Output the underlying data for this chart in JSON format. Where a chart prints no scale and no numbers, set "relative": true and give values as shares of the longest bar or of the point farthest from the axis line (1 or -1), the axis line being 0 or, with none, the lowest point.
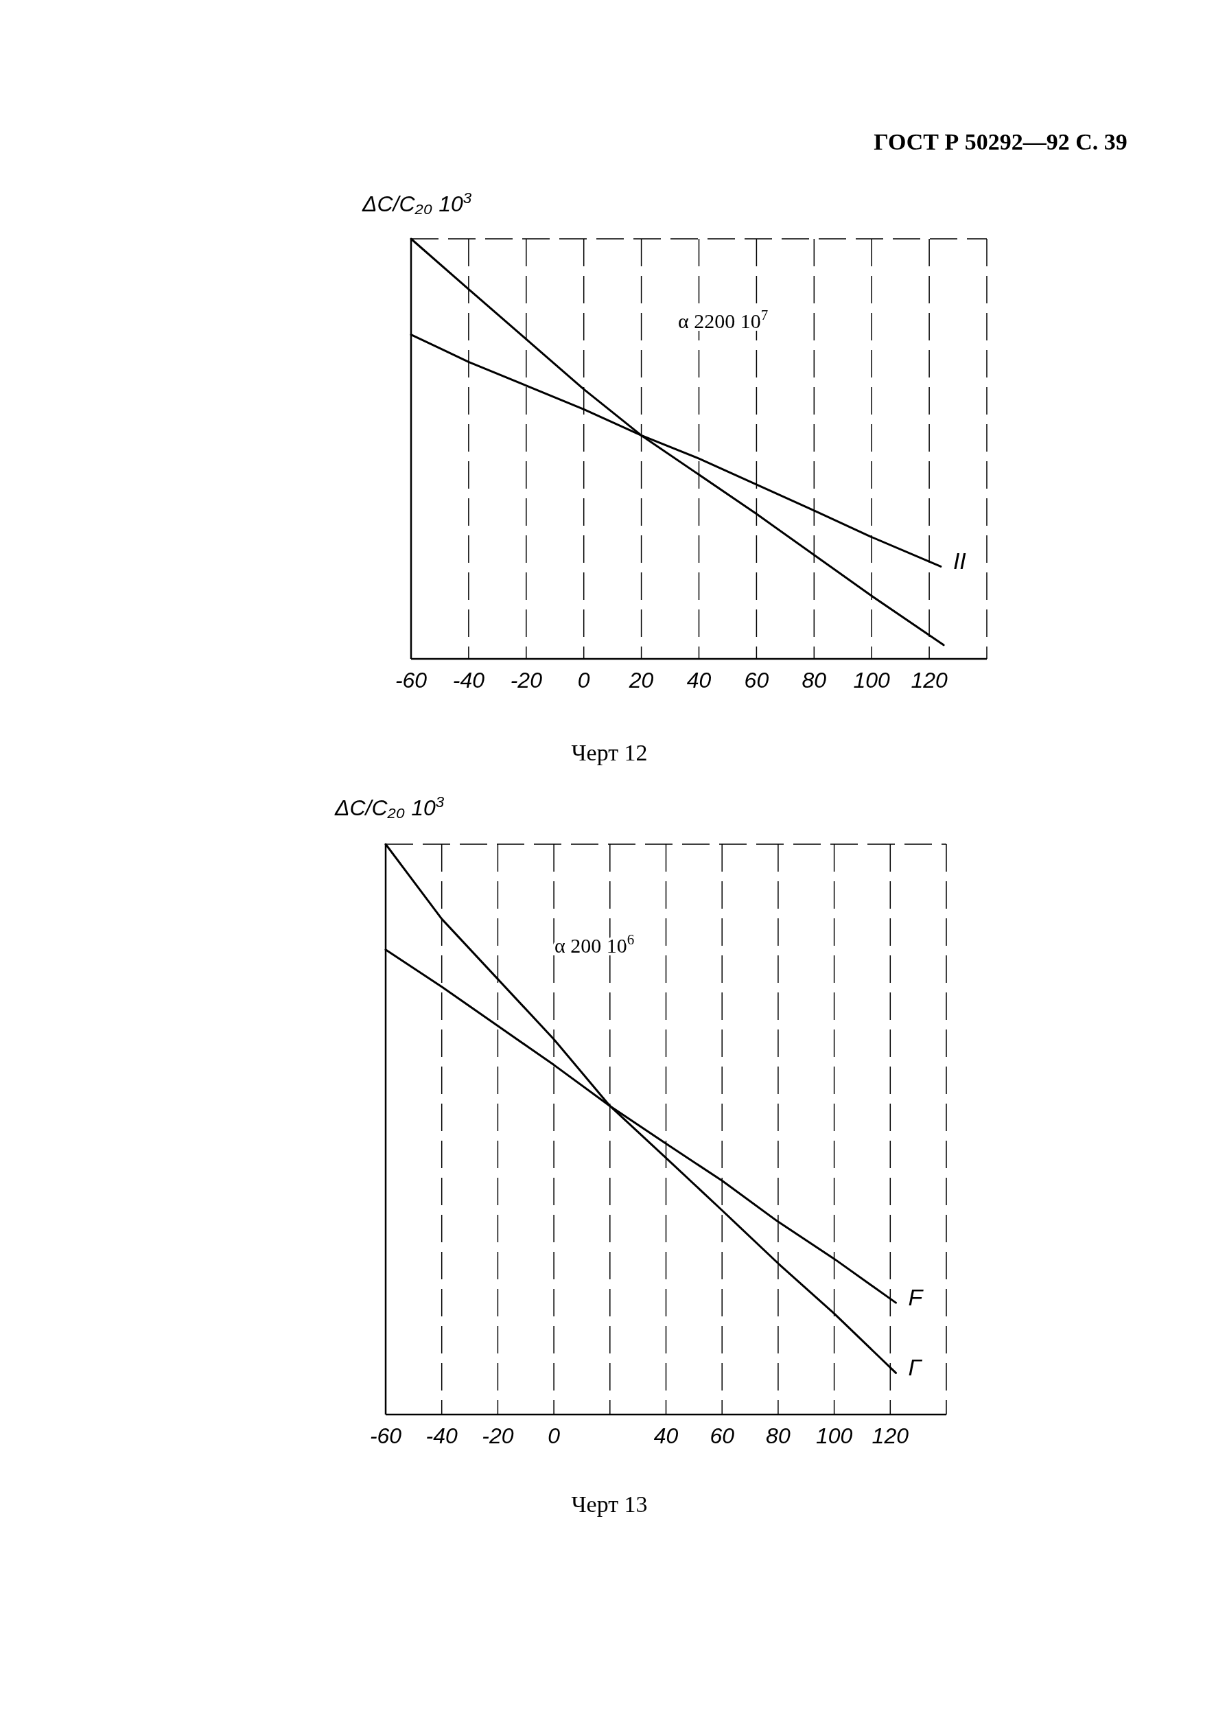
{
  "chart_data": [
    {
      "type": "line",
      "relative": true,
      "ylabel": "ΔC/C₂₀ 10$^{3}$",
      "x": [
        -60,
        -40,
        0,
        20,
        60,
        100,
        125
      ],
      "xlim": [
        -60,
        140
      ],
      "xticks": [
        -60,
        -40,
        -20,
        0,
        20,
        40,
        60,
        80,
        100,
        120
      ],
      "grid": "x",
      "tick_labels": "x",
      "legend": false,
      "marker": "none",
      "line_style": "solid",
      "series": [
        {
          "color": "#000000",
          "values": [
            1.0,
            0.88,
            0.642,
            0.532,
            0.345,
            0.15,
            0.033
          ]
        },
        {
          "name": "II",
          "color": "#000000",
          "x": [
            -60,
            -40,
            0,
            20,
            40,
            80,
            100,
            124
          ],
          "values": [
            0.772,
            0.707,
            0.594,
            0.532,
            0.477,
            0.353,
            0.29,
            0.22
          ]
        }
      ],
      "annotations": [
        "ГОСТ Р 50292—92 С. 39",
        "α 2200 10$^{7}$",
        "Черт 12"
      ]
    },
    {
      "type": "line",
      "relative": true,
      "ylabel": "ΔC/C₂₀ 10$^{3}$",
      "x": [
        -60,
        -40,
        0,
        20,
        40,
        60,
        80,
        100,
        122
      ],
      "xlim": [
        -60,
        140
      ],
      "xticks": [
        -60,
        -40,
        -20,
        0,
        {
          "value": 20,
          "label": null
        },
        40,
        60,
        80,
        100,
        120
      ],
      "grid": "x",
      "tick_labels": "x",
      "legend": false,
      "marker": "none",
      "line_style": "solid",
      "series": [
        {
          "name": "Г",
          "color": "#000000",
          "values": [
            1.0,
            0.869,
            0.658,
            0.541,
            0.45,
            0.358,
            0.265,
            0.177,
            0.073
          ]
        },
        {
          "name": "F",
          "color": "#000000",
          "values": [
            0.815,
            0.75,
            0.613,
            0.541,
            0.475,
            0.41,
            0.338,
            0.273,
            0.196
          ]
        }
      ],
      "annotations": [
        "α 200 10$^{6}$",
        "Черт 13"
      ]
    }
  ]
}
